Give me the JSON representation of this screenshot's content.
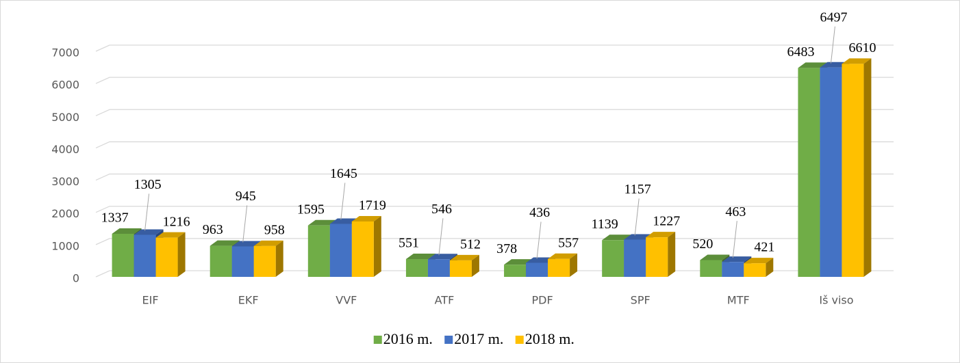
{
  "chart_data": {
    "type": "bar3d",
    "categories": [
      "EIF",
      "EKF",
      "VVF",
      "ATF",
      "PDF",
      "SPF",
      "MTF",
      "Iš viso"
    ],
    "series": [
      {
        "name": "2016 m.",
        "color": "#70ad47",
        "values": [
          1337,
          963,
          1595,
          551,
          378,
          1139,
          520,
          6483
        ]
      },
      {
        "name": "2017 m.",
        "color": "#4472c4",
        "values": [
          1305,
          945,
          1645,
          546,
          436,
          1157,
          463,
          6497
        ]
      },
      {
        "name": "2018 m.",
        "color": "#ffc000",
        "values": [
          1216,
          958,
          1719,
          512,
          557,
          1227,
          421,
          6610
        ]
      }
    ],
    "ylim": [
      0,
      7000
    ],
    "yticks": [
      0,
      1000,
      2000,
      3000,
      4000,
      5000,
      6000,
      7000
    ],
    "grid": true,
    "legend": "bottom"
  }
}
